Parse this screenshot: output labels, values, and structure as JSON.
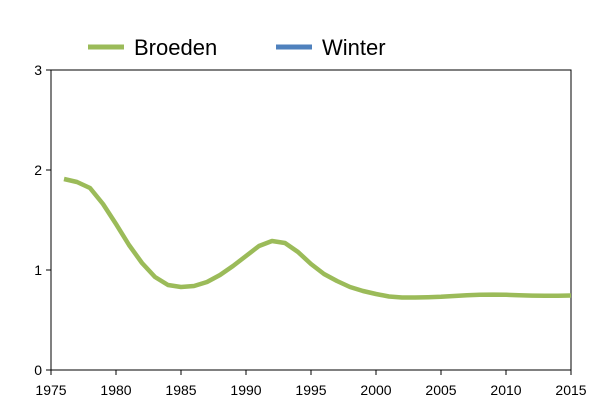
{
  "chart_data": {
    "type": "line",
    "title": "",
    "xlabel": "",
    "ylabel": "",
    "xlim": [
      1975,
      2015
    ],
    "ylim": [
      0,
      3
    ],
    "x_ticks": [
      1975,
      1980,
      1985,
      1990,
      1995,
      2000,
      2005,
      2010,
      2015
    ],
    "y_ticks": [
      0,
      1,
      2,
      3
    ],
    "grid": false,
    "legend_position": "top",
    "series": [
      {
        "name": "Broeden",
        "color": "#9bbb59",
        "x": [
          1976,
          1977,
          1978,
          1979,
          1980,
          1981,
          1982,
          1983,
          1984,
          1985,
          1986,
          1987,
          1988,
          1989,
          1990,
          1991,
          1992,
          1993,
          1994,
          1995,
          1996,
          1997,
          1998,
          1999,
          2000,
          2001,
          2002,
          2003,
          2004,
          2005,
          2006,
          2007,
          2008,
          2009,
          2010,
          2011,
          2012,
          2013,
          2014,
          2015
        ],
        "y": [
          1.91,
          1.88,
          1.82,
          1.66,
          1.46,
          1.25,
          1.07,
          0.93,
          0.85,
          0.83,
          0.84,
          0.88,
          0.95,
          1.04,
          1.14,
          1.24,
          1.29,
          1.27,
          1.18,
          1.06,
          0.96,
          0.89,
          0.83,
          0.79,
          0.76,
          0.735,
          0.725,
          0.725,
          0.728,
          0.732,
          0.74,
          0.748,
          0.753,
          0.754,
          0.752,
          0.748,
          0.744,
          0.742,
          0.742,
          0.745
        ]
      },
      {
        "name": "Winter",
        "color": "#4f81bd",
        "x": [],
        "y": []
      }
    ]
  }
}
